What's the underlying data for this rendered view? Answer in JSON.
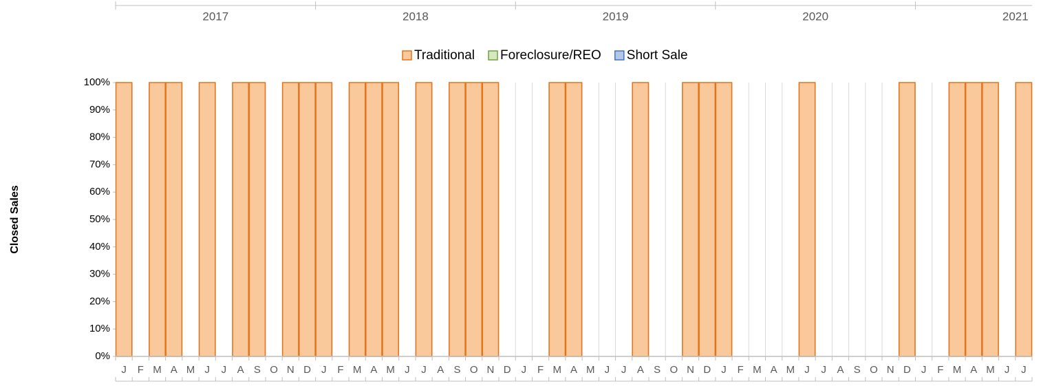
{
  "chart_data": {
    "type": "stacked_bar_percent",
    "ylabel": "Closed Sales",
    "categories": [
      "J",
      "F",
      "M",
      "A",
      "M",
      "J",
      "J",
      "A",
      "S",
      "O",
      "N",
      "D",
      "J",
      "F",
      "M",
      "A",
      "M",
      "J",
      "J",
      "A",
      "S",
      "O",
      "N",
      "D",
      "J",
      "F",
      "M",
      "A",
      "M",
      "J",
      "J",
      "A",
      "S",
      "O",
      "N",
      "D",
      "J",
      "F",
      "M",
      "A",
      "M",
      "J",
      "J",
      "A",
      "S",
      "O",
      "N",
      "D",
      "J",
      "F",
      "M",
      "A",
      "M",
      "J",
      "J"
    ],
    "year_labels": [
      "2017",
      "2018",
      "2019",
      "2020",
      "2021"
    ],
    "series": [
      {
        "name": "Traditional",
        "color": "#f9c89b",
        "edge": "#e3741b",
        "values": [
          100,
          0,
          100,
          100,
          0,
          100,
          0,
          100,
          100,
          0,
          100,
          100,
          100,
          0,
          100,
          100,
          100,
          0,
          100,
          0,
          100,
          100,
          100,
          0,
          0,
          0,
          100,
          100,
          0,
          0,
          0,
          100,
          0,
          0,
          100,
          100,
          100,
          0,
          0,
          0,
          0,
          100,
          0,
          0,
          0,
          0,
          0,
          100,
          0,
          0,
          100,
          100,
          100,
          0,
          100
        ]
      },
      {
        "name": "Foreclosure/REO",
        "color": "#d5e8bf",
        "edge": "#70a23f",
        "values": [
          0,
          0,
          0,
          0,
          0,
          0,
          0,
          0,
          0,
          0,
          0,
          0,
          0,
          0,
          0,
          0,
          0,
          0,
          0,
          0,
          0,
          0,
          0,
          0,
          0,
          0,
          0,
          0,
          0,
          0,
          0,
          0,
          0,
          0,
          0,
          0,
          0,
          0,
          0,
          0,
          0,
          0,
          0,
          0,
          0,
          0,
          0,
          0,
          0,
          0,
          0,
          0,
          0,
          0,
          0
        ]
      },
      {
        "name": "Short Sale",
        "color": "#b4c7e7",
        "edge": "#4472c4",
        "values": [
          0,
          0,
          0,
          0,
          0,
          0,
          0,
          0,
          0,
          0,
          0,
          0,
          0,
          0,
          0,
          0,
          0,
          0,
          0,
          0,
          0,
          0,
          0,
          0,
          0,
          0,
          0,
          0,
          0,
          0,
          0,
          0,
          0,
          0,
          0,
          0,
          0,
          0,
          0,
          0,
          0,
          0,
          0,
          0,
          0,
          0,
          0,
          0,
          0,
          0,
          0,
          0,
          0,
          0,
          0
        ]
      }
    ],
    "ylim": [
      0,
      100
    ],
    "yticks": [
      {
        "value": 0,
        "label": "0%"
      },
      {
        "value": 10,
        "label": "10%"
      },
      {
        "value": 20,
        "label": "20%"
      },
      {
        "value": 30,
        "label": "30%"
      },
      {
        "value": 40,
        "label": "40%"
      },
      {
        "value": 50,
        "label": "50%"
      },
      {
        "value": 60,
        "label": "60%"
      },
      {
        "value": 70,
        "label": "70%"
      },
      {
        "value": 80,
        "label": "80%"
      },
      {
        "value": 90,
        "label": "90%"
      },
      {
        "value": 100,
        "label": "100%"
      }
    ],
    "grid": true,
    "legend": "top"
  }
}
